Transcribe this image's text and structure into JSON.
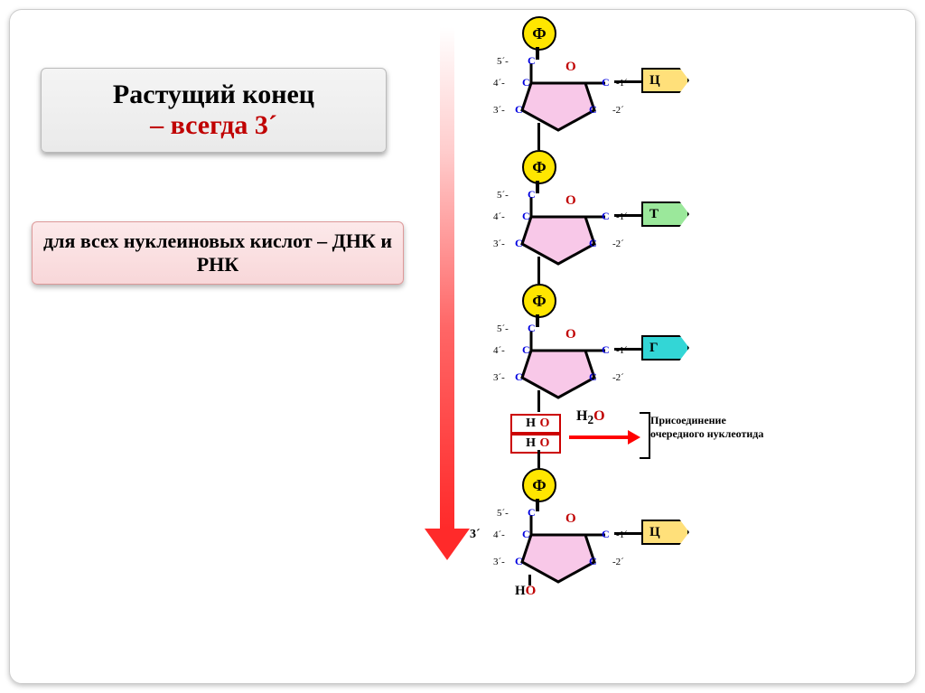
{
  "title": {
    "line1": "Растущий конец",
    "line2": "– всегда 3´"
  },
  "subtitle": "для всех нуклеиновых кислот – ДНК и РНК",
  "arrow": {
    "gradient_top": "#ffffff",
    "gradient_mid": "#ff6666",
    "gradient_bottom": "#ff2a2a"
  },
  "three_prime_label": "3´",
  "phosphate_label": "Ф",
  "sugar": {
    "fill": "#f8c8e8",
    "stroke": "#000000",
    "c_label_color": "#0000e0",
    "carbons": [
      "C",
      "C",
      "C",
      "C",
      "C"
    ],
    "primes": [
      "5´-",
      "4´-",
      "3´-",
      "-2´",
      "-1´"
    ],
    "O": "O"
  },
  "bases": [
    {
      "letter": "Ц",
      "bg": "#ffe07a"
    },
    {
      "letter": "Т",
      "bg": "#9be89b"
    },
    {
      "letter": "Г",
      "bg": "#33d6d6"
    },
    {
      "letter": "Ц",
      "bg": "#ffe07a"
    }
  ],
  "ho": {
    "H": "H",
    "O": "O"
  },
  "h2o": "H₂O",
  "side_text": "Присоединение очередного нуклеотида",
  "ho_final": "HO",
  "layout": {
    "unit_height": 148,
    "gap_after_3": 56
  },
  "colors": {
    "title_red": "#c00000",
    "phosphate": "#ffe600",
    "box_red_border": "#c00000"
  }
}
